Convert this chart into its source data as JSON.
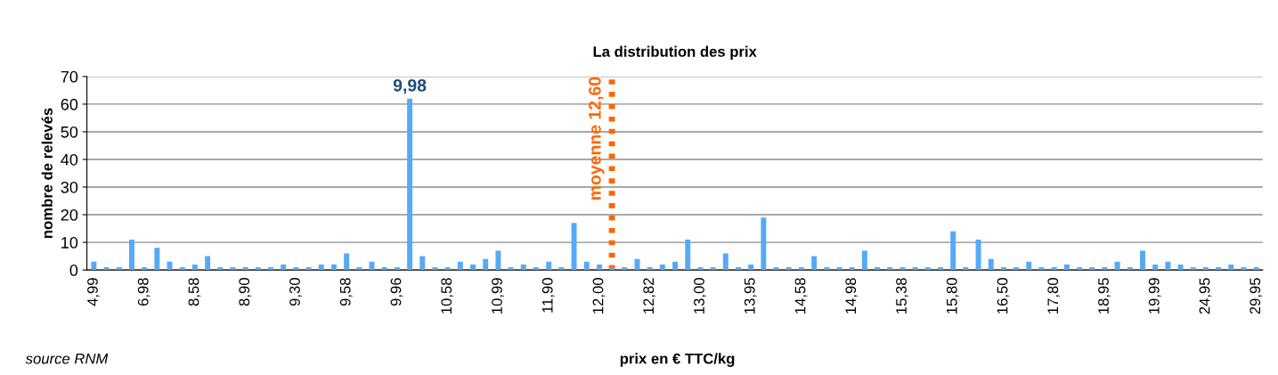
{
  "chart_data": {
    "type": "bar",
    "title": "La distribution des prix",
    "xlabel": "prix en € TTC/kg",
    "ylabel": "nombre de relevés",
    "categories": [
      "4,99",
      null,
      null,
      null,
      "6,98",
      null,
      null,
      null,
      "8,58",
      null,
      null,
      null,
      "8,90",
      null,
      null,
      null,
      "9,30",
      null,
      null,
      null,
      "9,58",
      null,
      null,
      null,
      "9,96",
      null,
      null,
      null,
      "10,58",
      null,
      null,
      null,
      "10,99",
      null,
      null,
      null,
      "11,90",
      null,
      null,
      null,
      "12,00",
      null,
      null,
      null,
      "12,82",
      null,
      null,
      null,
      "13,00",
      null,
      null,
      null,
      "13,95",
      null,
      null,
      null,
      "14,58",
      null,
      null,
      null,
      "14,98",
      null,
      null,
      null,
      "15,38",
      null,
      null,
      null,
      "15,80",
      null,
      null,
      null,
      "16,50",
      null,
      null,
      null,
      "17,80",
      null,
      null,
      null,
      "18,95",
      null,
      null,
      null,
      "19,99",
      null,
      null,
      null,
      "24,95",
      null,
      null,
      null,
      "29,95"
    ],
    "values": [
      3,
      1,
      1,
      11,
      1,
      8,
      3,
      1,
      2,
      5,
      1,
      1,
      1,
      1,
      1,
      2,
      1,
      1,
      2,
      2,
      6,
      1,
      3,
      1,
      1,
      62,
      5,
      1,
      1,
      3,
      2,
      4,
      7,
      1,
      2,
      1,
      3,
      1,
      17,
      3,
      2,
      1,
      1,
      4,
      1,
      2,
      3,
      11,
      1,
      1,
      6,
      1,
      2,
      19,
      1,
      1,
      1,
      5,
      1,
      1,
      1,
      7,
      1,
      1,
      1,
      1,
      1,
      1,
      14,
      1,
      11,
      4,
      1,
      1,
      3,
      1,
      1,
      2,
      1,
      1,
      1,
      3,
      1,
      7,
      2,
      3,
      2,
      1,
      1,
      1,
      2,
      1,
      1
    ],
    "color": "#55aaf7",
    "ylim": [
      0,
      70
    ],
    "yticks": [
      0,
      10,
      20,
      30,
      40,
      50,
      60,
      70
    ],
    "grid": "y",
    "annotations": [
      "9,98",
      "moyenne 12,60",
      "source RNM"
    ]
  }
}
